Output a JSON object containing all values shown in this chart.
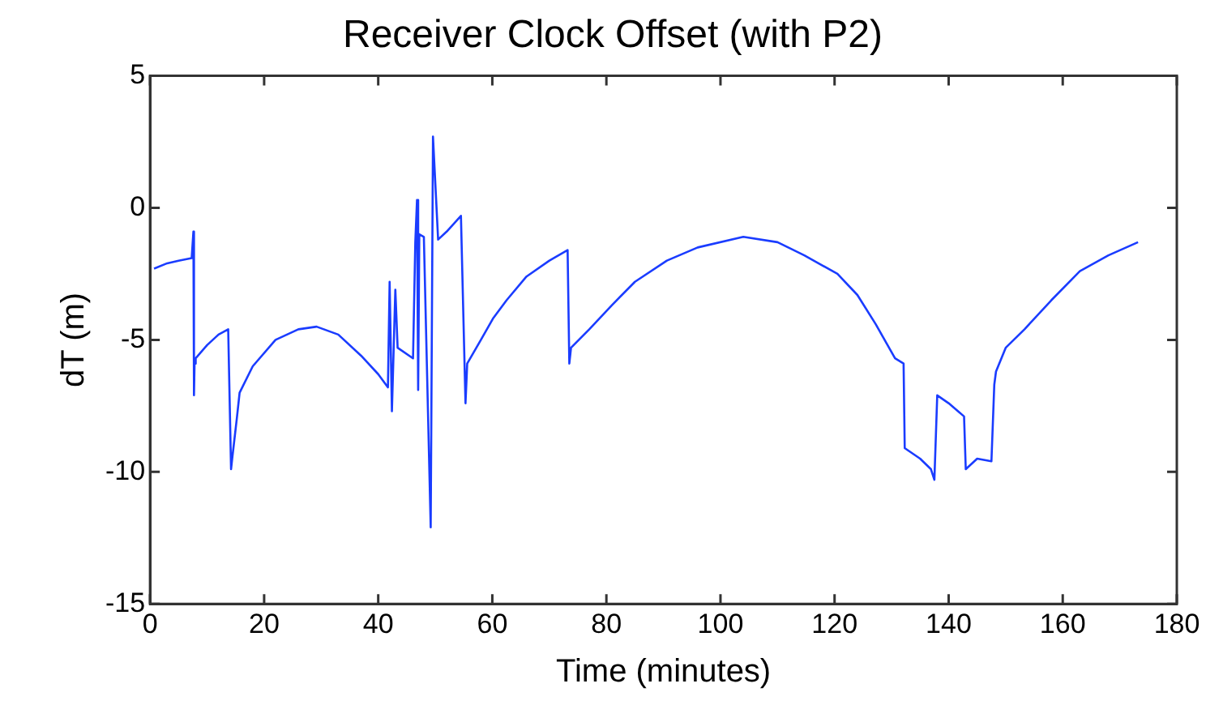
{
  "chart_data": {
    "type": "line",
    "title": "Receiver Clock Offset (with P2)",
    "xlabel": "Time (minutes)",
    "ylabel": "dT (m)",
    "xlim": [
      0,
      180
    ],
    "xticks": [
      0,
      20,
      40,
      60,
      80,
      100,
      120,
      140,
      160,
      180
    ],
    "ylim": [
      -15,
      5
    ],
    "yticks": [
      -15,
      -10,
      -5,
      0,
      5
    ],
    "grid": false,
    "legend": false,
    "marker": "none",
    "line_style": "solid",
    "series": [
      {
        "color": "#1a3cff",
        "x": [
          0.7,
          3,
          5,
          7.3,
          7.6,
          7.7,
          7.8,
          8,
          10,
          12,
          13.7,
          14.2,
          14.4,
          15.2,
          15.7,
          18,
          22,
          26,
          29.2,
          33,
          37,
          40,
          41.7,
          42,
          42.4,
          43,
          43.4,
          46.1,
          46.5,
          46.8,
          47,
          47.2,
          48,
          49.2,
          49.6,
          50.5,
          52,
          54.5,
          55.3,
          55.6,
          58,
          60.1,
          62.5,
          66,
          70,
          73.2,
          73.5,
          73.8,
          77,
          80.9,
          85,
          90.6,
          96,
          104,
          110,
          114.7,
          120.5,
          124,
          127.2,
          130.6,
          132.1,
          132.3,
          135,
          136.9,
          137.5,
          138,
          140,
          142.7,
          143,
          145,
          147.5,
          148,
          148.3,
          150,
          153.3,
          158,
          163,
          168,
          173.2
        ],
        "values": [
          -2.3,
          -2.1,
          -2.0,
          -1.9,
          -0.9,
          -7.1,
          -5.9,
          -5.7,
          -5.2,
          -4.8,
          -4.6,
          -9.9,
          -9.5,
          -8.0,
          -7.0,
          -6.0,
          -5.0,
          -4.6,
          -4.5,
          -4.8,
          -5.6,
          -6.3,
          -6.8,
          -2.8,
          -7.7,
          -3.1,
          -5.3,
          -5.7,
          -1.3,
          0.3,
          -6.9,
          -1.0,
          -1.1,
          -12.1,
          2.7,
          -1.2,
          -0.9,
          -0.3,
          -7.4,
          -5.9,
          -5.0,
          -4.2,
          -3.5,
          -2.6,
          -2.0,
          -1.6,
          -5.9,
          -5.3,
          -4.6,
          -3.7,
          -2.8,
          -2.0,
          -1.5,
          -1.1,
          -1.3,
          -1.8,
          -2.5,
          -3.3,
          -4.4,
          -5.7,
          -5.9,
          -9.1,
          -9.5,
          -9.9,
          -10.3,
          -7.1,
          -7.4,
          -7.9,
          -9.9,
          -9.5,
          -9.6,
          -6.7,
          -6.2,
          -5.3,
          -4.6,
          -3.5,
          -2.4,
          -1.8,
          -1.3
        ]
      }
    ]
  }
}
